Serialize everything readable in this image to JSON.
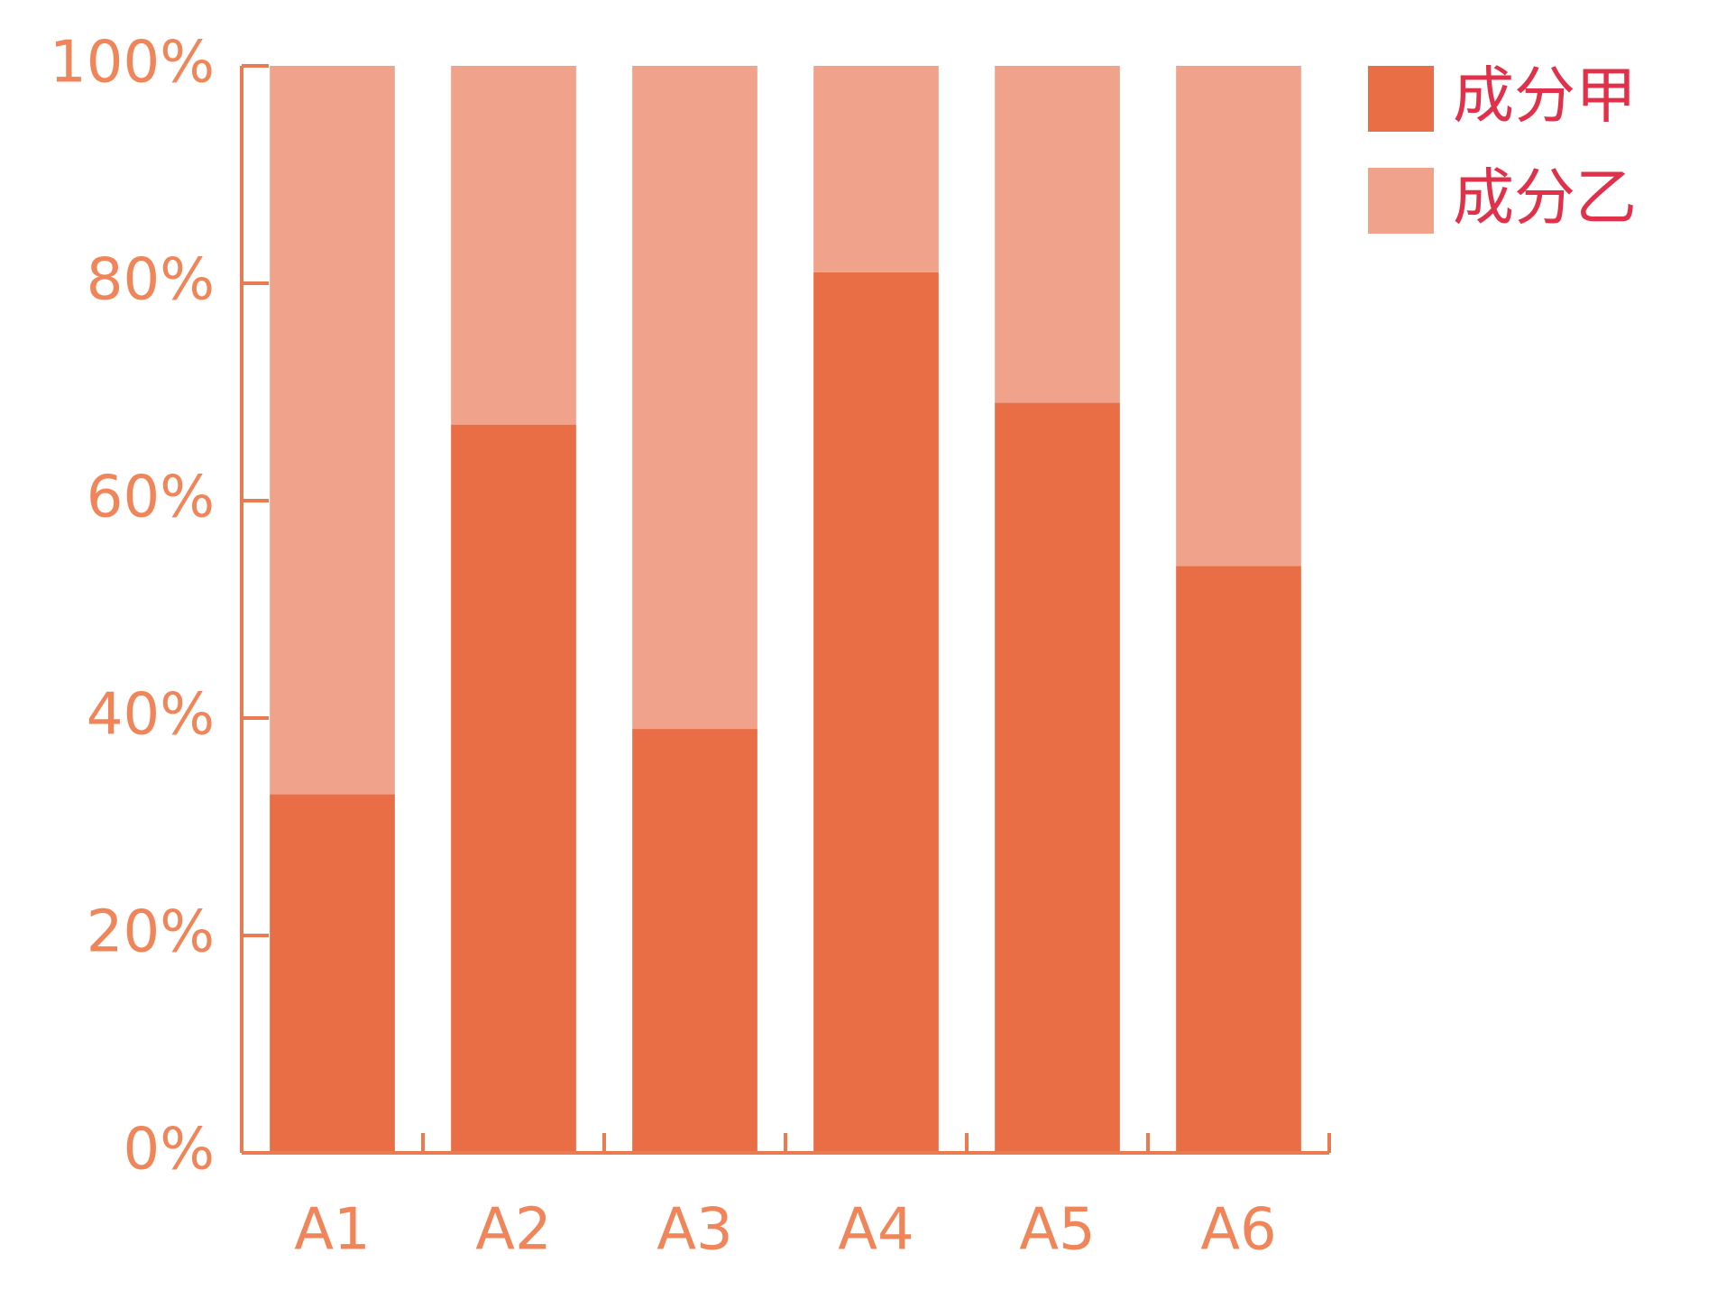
{
  "chart_data": {
    "type": "stacked-bar",
    "categories": [
      "A1",
      "A2",
      "A3",
      "A4",
      "A5",
      "A6"
    ],
    "series": [
      {
        "name": "成分甲",
        "color": "#e96e46",
        "values": [
          33,
          67,
          39,
          81,
          69,
          54
        ]
      },
      {
        "name": "成分乙",
        "color": "#f0a38a",
        "values": [
          67,
          33,
          61,
          19,
          31,
          46
        ]
      }
    ],
    "ylim": [
      0,
      100
    ],
    "yticks": [
      {
        "value": 0,
        "label": "0%"
      },
      {
        "value": 20,
        "label": "20%"
      },
      {
        "value": 40,
        "label": "40%"
      },
      {
        "value": 60,
        "label": "60%"
      },
      {
        "value": 80,
        "label": "80%"
      },
      {
        "value": 100,
        "label": "100%"
      }
    ],
    "axis_color": "#ea7a50",
    "tick_label_color": "#f0855a",
    "legend_text_color": "#e0304a",
    "legend": "top-right"
  }
}
